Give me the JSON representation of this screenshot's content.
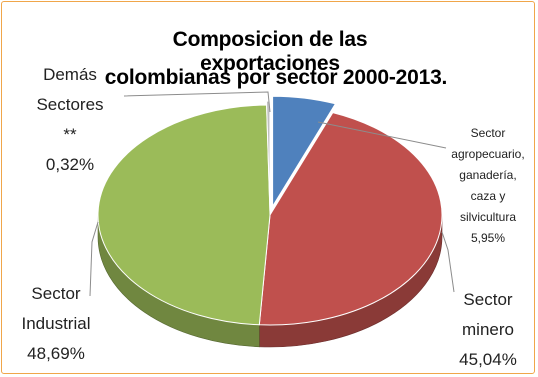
{
  "chart_data": {
    "type": "pie",
    "style": "3d",
    "title_lines": [
      "Composicion de las exportaciones",
      "colombianas por sector 2000-2013."
    ],
    "slices": [
      {
        "label_lines": [
          "Sector",
          "agropecuario,",
          "ganadería,",
          "caza y",
          "silvicultura"
        ],
        "pct_text": "5,95%",
        "value": 5.95,
        "color": "#4f81bd"
      },
      {
        "label_lines": [
          "Sector",
          "minero"
        ],
        "pct_text": "45,04%",
        "value": 45.04,
        "color": "#c0504d"
      },
      {
        "label_lines": [
          "Sector",
          "Industrial"
        ],
        "pct_text": "48,69%",
        "value": 48.69,
        "color": "#9bbb59"
      },
      {
        "label_lines": [
          "Demás",
          "Sectores",
          "**"
        ],
        "pct_text": "0,32%",
        "value": 0.32,
        "color": "#bfbfbf"
      }
    ]
  }
}
